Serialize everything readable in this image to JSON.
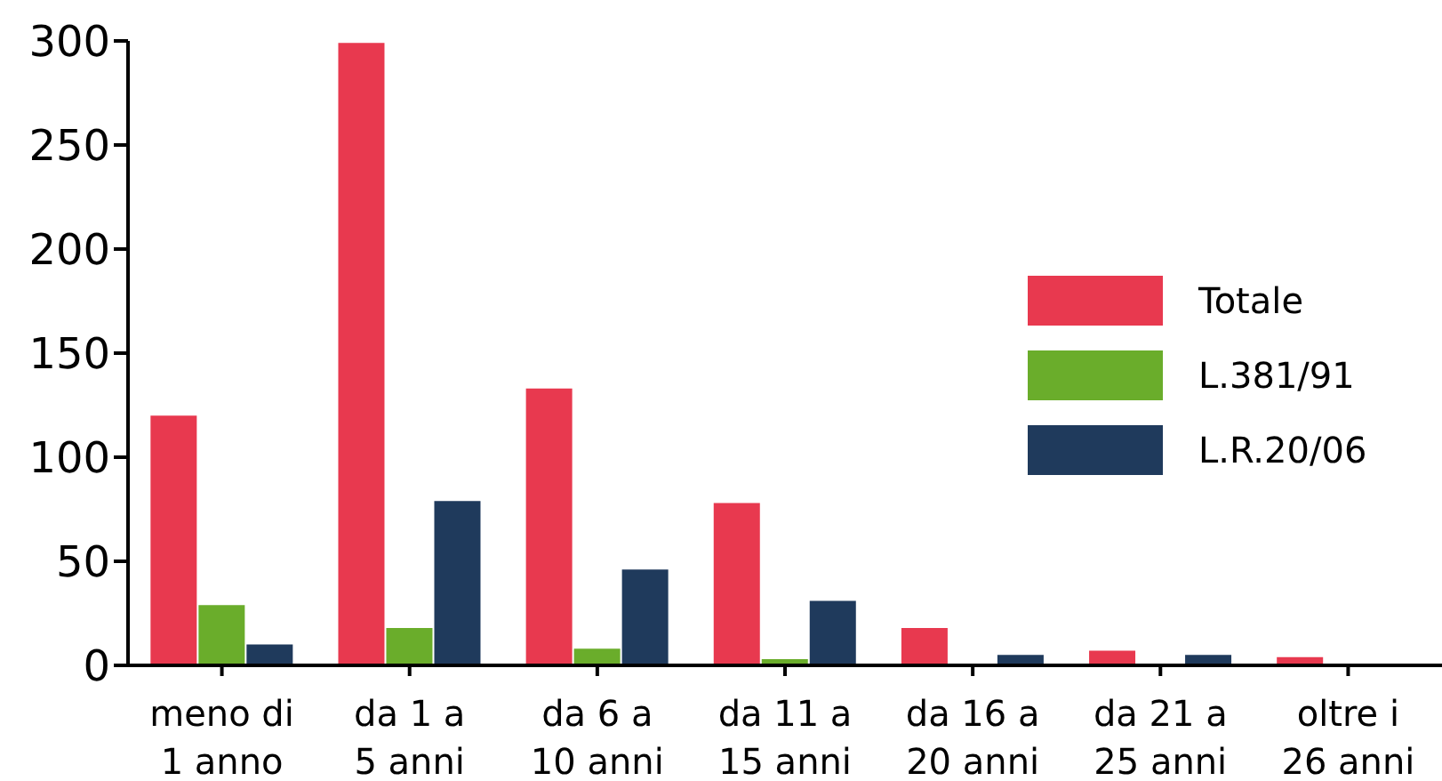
{
  "chart_data": {
    "type": "bar",
    "categories": [
      "meno di\n1 anno",
      "da 1 a\n5 anni",
      "da 6 a\n10 anni",
      "da 11 a\n15 anni",
      "da 16 a\n20 anni",
      "da 21 a\n25 anni",
      "oltre i\n26 anni"
    ],
    "series": [
      {
        "name": "Totale",
        "color": "#e8394f",
        "values": [
          120,
          299,
          133,
          78,
          18,
          7,
          4
        ]
      },
      {
        "name": "L.381/91",
        "color": "#6aad2b",
        "values": [
          29,
          18,
          8,
          3,
          null,
          null,
          null
        ]
      },
      {
        "name": "L.R.20/06",
        "color": "#1f3a5c",
        "values": [
          10,
          79,
          46,
          31,
          5,
          5,
          null
        ]
      }
    ],
    "ylim": [
      0,
      300
    ],
    "yticks": [
      0,
      50,
      100,
      150,
      200,
      250,
      300
    ],
    "grid": false,
    "legend": "right"
  }
}
